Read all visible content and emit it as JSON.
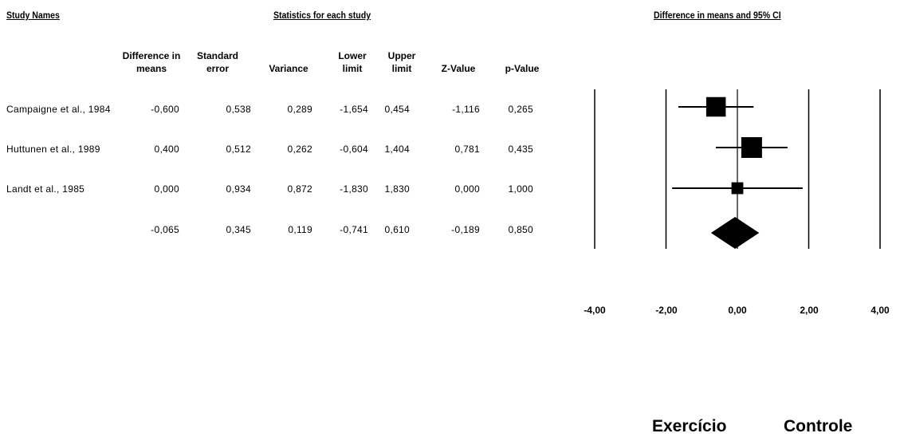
{
  "headers": {
    "study_names": "Study Names",
    "stats": "Statistics for each study",
    "ci": "Difference in means and 95% CI"
  },
  "columns": [
    "Difference in means",
    "Standard error",
    "Variance",
    "Lower limit",
    "Upper limit",
    "Z-Value",
    "p-Value"
  ],
  "rows": [
    {
      "name": "Campaigne et al., 1984",
      "cells": [
        "-0,600",
        "0,538",
        "0,289",
        "-1,654",
        "0,454",
        "-1,116",
        "0,265"
      ]
    },
    {
      "name": "Huttunen et al., 1989",
      "cells": [
        "0,400",
        "0,512",
        "0,262",
        "-0,604",
        "1,404",
        "0,781",
        "0,435"
      ]
    },
    {
      "name": "Landt et al., 1985",
      "cells": [
        "0,000",
        "0,934",
        "0,872",
        "-1,830",
        "1,830",
        "0,000",
        "1,000"
      ]
    },
    {
      "name": "",
      "cells": [
        "-0,065",
        "0,345",
        "0,119",
        "-0,741",
        "0,610",
        "-0,189",
        "0,850"
      ]
    }
  ],
  "axis": {
    "ticks": [
      "-4,00",
      "-2,00",
      "0,00",
      "2,00",
      "4,00"
    ],
    "left_label": "Exercício",
    "right_label": "Controle"
  },
  "chart_data": {
    "type": "forest",
    "title": "Difference in means and 95% CI",
    "xlim": [
      -4,
      4
    ],
    "xticks": [
      -4,
      -2,
      0,
      2,
      4
    ],
    "studies": [
      {
        "name": "Campaigne et al., 1984",
        "estimate": -0.6,
        "lower": -1.654,
        "upper": 0.454,
        "variance": 0.289
      },
      {
        "name": "Huttunen et al., 1989",
        "estimate": 0.4,
        "lower": -0.604,
        "upper": 1.404,
        "variance": 0.262
      },
      {
        "name": "Landt et al., 1985",
        "estimate": 0.0,
        "lower": -1.83,
        "upper": 1.83,
        "variance": 0.872
      }
    ],
    "summary": {
      "estimate": -0.065,
      "lower": -0.741,
      "upper": 0.61
    },
    "left_label": "Exercício",
    "right_label": "Controle"
  }
}
